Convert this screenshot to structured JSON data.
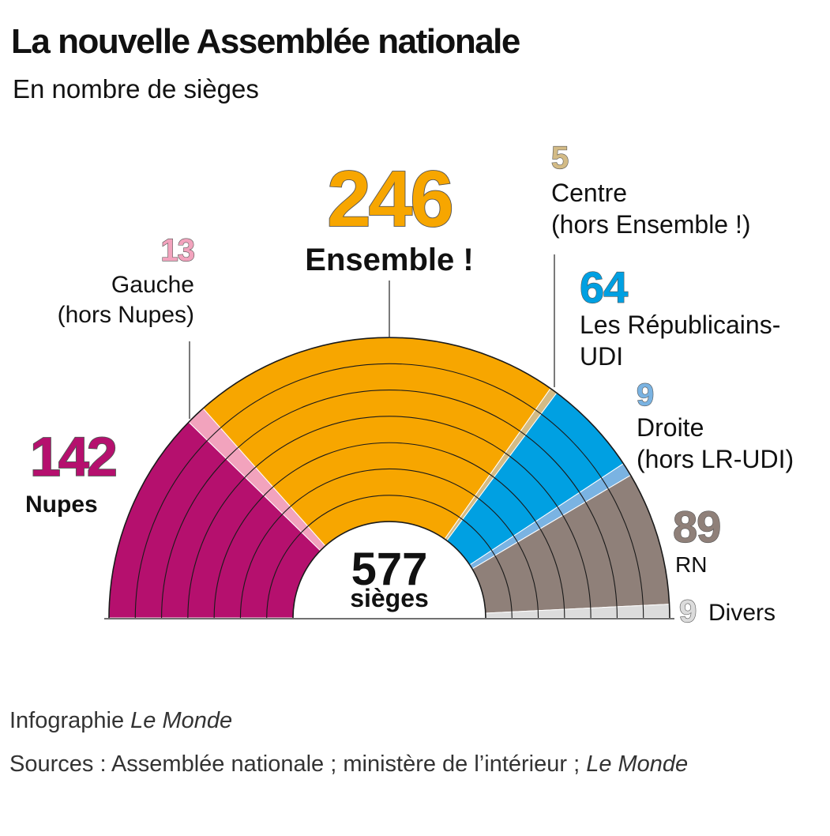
{
  "title": "La nouvelle Assemblée nationale",
  "subtitle": "En nombre de sièges",
  "footer": {
    "credit_prefix": "Infographie ",
    "credit_source": "Le Monde",
    "sources_prefix": "Sources : Assemblée nationale ; ministère de l’intérieur ; ",
    "sources_source": "Le Monde"
  },
  "chart_data": {
    "type": "pie",
    "subtype": "hemicycle",
    "total": {
      "value": "577",
      "label": "sièges"
    },
    "series": [
      {
        "name": "Nupes",
        "value": 142,
        "color": "#b5106e",
        "label_lines": [
          "Nupes"
        ],
        "bold_label": true
      },
      {
        "name": "Gauche (hors Nupes)",
        "value": 13,
        "color": "#f2a3bd",
        "label_lines": [
          "Gauche",
          "(hors Nupes)"
        ],
        "bold_label": false
      },
      {
        "name": "Ensemble !",
        "value": 246,
        "color": "#f7a600",
        "label_lines": [
          "Ensemble !"
        ],
        "bold_label": true
      },
      {
        "name": "Centre (hors Ensemble !)",
        "value": 5,
        "color": "#d3bb86",
        "label_lines": [
          "Centre",
          "(hors Ensemble !)"
        ],
        "bold_label": false
      },
      {
        "name": "Les Républicains-UDI",
        "value": 64,
        "color": "#00a0e2",
        "label_lines": [
          "Les Républicains-",
          "UDI"
        ],
        "bold_label": false
      },
      {
        "name": "Droite (hors LR-UDI)",
        "value": 9,
        "color": "#7ab3e2",
        "label_lines": [
          "Droite",
          "(hors LR-UDI)"
        ],
        "bold_label": false
      },
      {
        "name": "RN",
        "value": 89,
        "color": "#8f8079",
        "label_lines": [
          "RN"
        ],
        "bold_label": false
      },
      {
        "name": "Divers",
        "value": 9,
        "color": "#dcdcdc",
        "label_lines": [
          "Divers"
        ],
        "bold_label": false
      }
    ]
  }
}
